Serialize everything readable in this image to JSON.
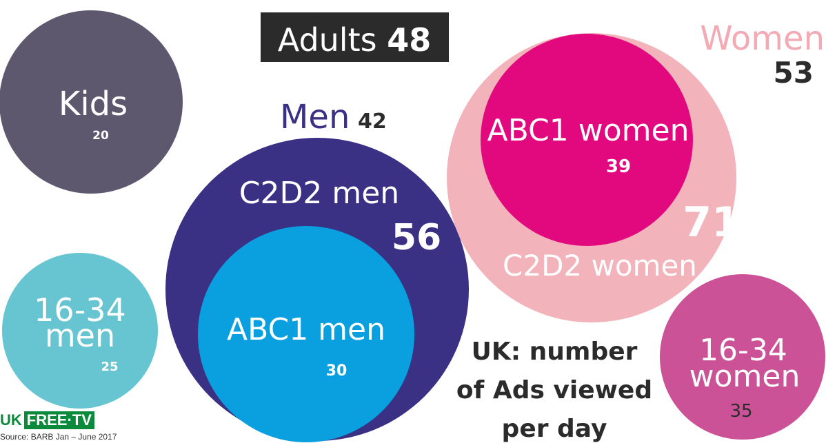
{
  "title": "UK: number of Ads viewed per day",
  "title_lines": [
    "UK: number",
    "of Ads viewed",
    "per day"
  ],
  "adults": {
    "label": "Adults",
    "value": "48"
  },
  "men": {
    "label": "Men",
    "value": "42"
  },
  "women": {
    "label": "Women",
    "value": "53"
  },
  "source": "Source: BARB Jan – June 2017",
  "logo": {
    "uk": "UK",
    "free": "FREE·TV"
  },
  "colors": {
    "kids": "#5e586e",
    "men_16_34": "#67c5d2",
    "c2d2_men": "#3a3185",
    "abc1_men": "#0aa0e0",
    "c2d2_women": "#f2b3ba",
    "abc1_women": "#e2087e",
    "women_16_34": "#cc5298",
    "women_label": "#f3aab4"
  },
  "chart_data": {
    "type": "bubble",
    "groups": [
      {
        "name": "Kids",
        "value": 20
      },
      {
        "name": "16-34 men",
        "value": 25
      },
      {
        "name": "C2D2 men",
        "value": 56
      },
      {
        "name": "ABC1 men",
        "value": 30
      },
      {
        "name": "ABC1 women",
        "value": 39
      },
      {
        "name": "C2D2 women",
        "value": 71
      },
      {
        "name": "16-34 women",
        "value": 35
      }
    ],
    "totals": [
      {
        "name": "Adults",
        "value": 48
      },
      {
        "name": "Men",
        "value": 42
      },
      {
        "name": "Women",
        "value": 53
      }
    ]
  }
}
